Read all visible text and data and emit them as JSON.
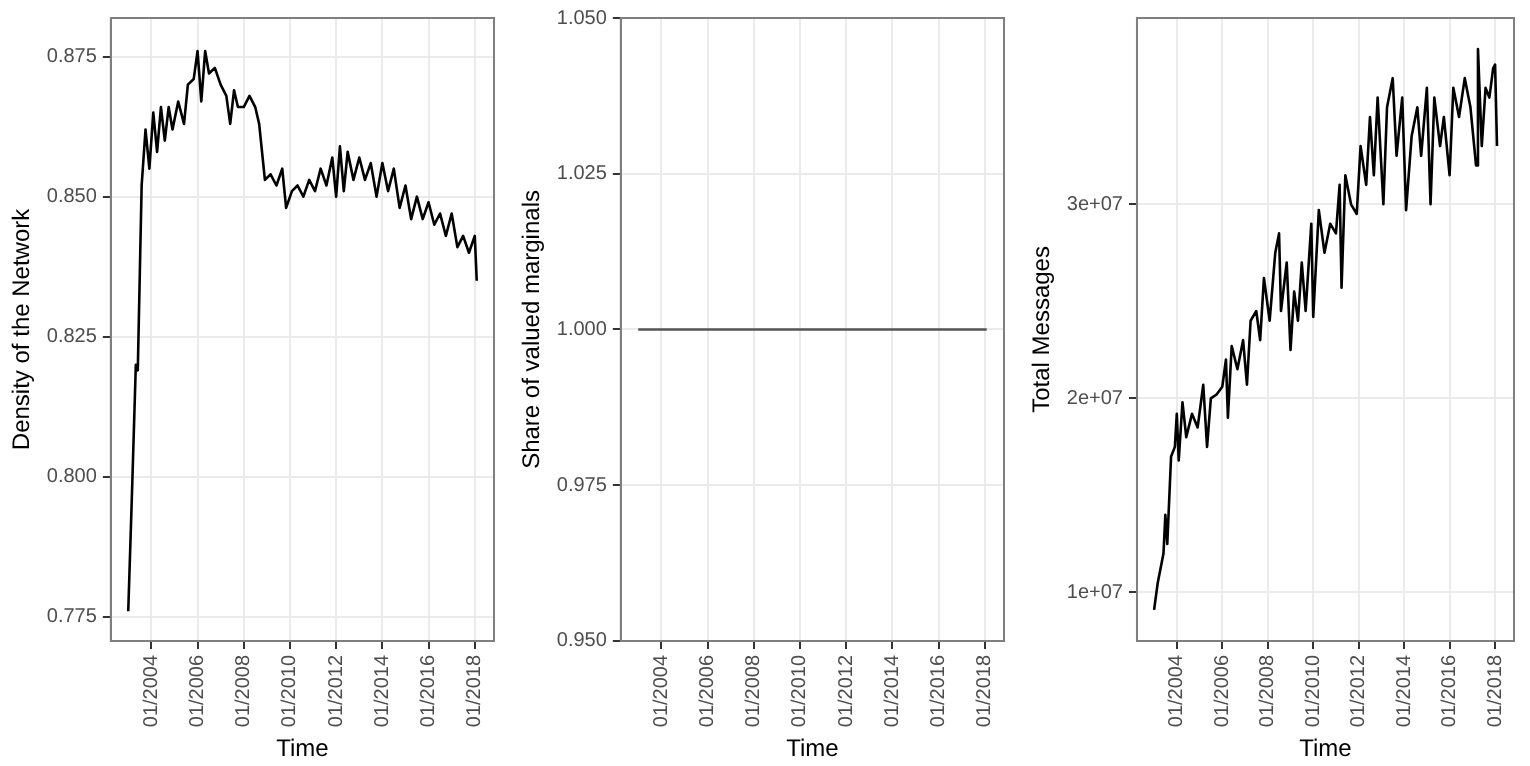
{
  "chart_data": [
    {
      "type": "line",
      "xlabel": "Time",
      "ylabel": "Density of the Network",
      "grid": true,
      "legend": false,
      "marker": "none",
      "line_style": "solid",
      "x": [
        "2003-01",
        "2003-03",
        "2003-05",
        "2003-06",
        "2003-08",
        "2003-10",
        "2003-12",
        "2004-02",
        "2004-04",
        "2004-06",
        "2004-08",
        "2004-10",
        "2004-12",
        "2005-03",
        "2005-06",
        "2005-08",
        "2005-11",
        "2006-01",
        "2006-03",
        "2006-05",
        "2006-07",
        "2006-10",
        "2007-01",
        "2007-04",
        "2007-06",
        "2007-08",
        "2007-10",
        "2008-01",
        "2008-04",
        "2008-07",
        "2008-09",
        "2008-12",
        "2009-03",
        "2009-06",
        "2009-09",
        "2009-11",
        "2010-02",
        "2010-05",
        "2010-08",
        "2010-11",
        "2011-02",
        "2011-05",
        "2011-08",
        "2011-11",
        "2012-01",
        "2012-03",
        "2012-05",
        "2012-07",
        "2012-10",
        "2013-01",
        "2013-04",
        "2013-07",
        "2013-10",
        "2014-01",
        "2014-04",
        "2014-07",
        "2014-10",
        "2015-01",
        "2015-04",
        "2015-07",
        "2015-10",
        "2016-01",
        "2016-04",
        "2016-07",
        "2016-10",
        "2017-01",
        "2017-04",
        "2017-07",
        "2017-10",
        "2018-01",
        "2018-02"
      ],
      "series": [
        {
          "color": "#000000",
          "values": [
            0.776,
            0.797,
            0.82,
            0.819,
            0.852,
            0.862,
            0.855,
            0.865,
            0.858,
            0.866,
            0.86,
            0.866,
            0.862,
            0.867,
            0.863,
            0.87,
            0.871,
            0.876,
            0.867,
            0.876,
            0.872,
            0.873,
            0.87,
            0.868,
            0.863,
            0.869,
            0.866,
            0.866,
            0.868,
            0.866,
            0.863,
            0.853,
            0.854,
            0.852,
            0.855,
            0.848,
            0.851,
            0.852,
            0.85,
            0.853,
            0.851,
            0.855,
            0.852,
            0.857,
            0.85,
            0.859,
            0.851,
            0.858,
            0.853,
            0.857,
            0.853,
            0.856,
            0.85,
            0.856,
            0.851,
            0.855,
            0.848,
            0.852,
            0.846,
            0.85,
            0.846,
            0.849,
            0.845,
            0.847,
            0.843,
            0.847,
            0.841,
            0.843,
            0.84,
            0.843,
            0.835
          ]
        }
      ],
      "xlim": [
        "2002-04",
        "2018-11"
      ],
      "xticks": [
        {
          "value": "2004-01",
          "label": "01/2004"
        },
        {
          "value": "2006-01",
          "label": "01/2006"
        },
        {
          "value": "2008-01",
          "label": "01/2008"
        },
        {
          "value": "2010-01",
          "label": "01/2010"
        },
        {
          "value": "2012-01",
          "label": "01/2012"
        },
        {
          "value": "2014-01",
          "label": "01/2014"
        },
        {
          "value": "2016-01",
          "label": "01/2016"
        },
        {
          "value": "2018-01",
          "label": "01/2018"
        }
      ],
      "ylim": [
        0.7707,
        0.8819
      ],
      "yticks": [
        {
          "value": 0.775,
          "label": "0.775"
        },
        {
          "value": 0.8,
          "label": "0.800"
        },
        {
          "value": 0.825,
          "label": "0.825"
        },
        {
          "value": 0.85,
          "label": "0.850"
        },
        {
          "value": 0.875,
          "label": "0.875"
        }
      ]
    },
    {
      "type": "line",
      "xlabel": "Time",
      "ylabel": "Share of valued marginals",
      "grid": true,
      "legend": false,
      "marker": "none",
      "line_style": "solid",
      "x": [
        "2003-01",
        "2008-01",
        "2013-01",
        "2018-02"
      ],
      "series": [
        {
          "color": "#555555",
          "values": [
            1,
            1,
            1,
            1
          ]
        }
      ],
      "xlim": [
        "2002-04",
        "2018-11"
      ],
      "xticks": [
        {
          "value": "2004-01",
          "label": "01/2004"
        },
        {
          "value": "2006-01",
          "label": "01/2006"
        },
        {
          "value": "2008-01",
          "label": "01/2008"
        },
        {
          "value": "2010-01",
          "label": "01/2010"
        },
        {
          "value": "2012-01",
          "label": "01/2012"
        },
        {
          "value": "2014-01",
          "label": "01/2014"
        },
        {
          "value": "2016-01",
          "label": "01/2016"
        },
        {
          "value": "2018-01",
          "label": "01/2018"
        }
      ],
      "ylim": [
        0.95,
        1.05
      ],
      "yticks": [
        {
          "value": 0.95,
          "label": "0.950"
        },
        {
          "value": 0.975,
          "label": "0.975"
        },
        {
          "value": 1,
          "label": "1.000"
        },
        {
          "value": 1.025,
          "label": "1.025"
        },
        {
          "value": 1.05,
          "label": "1.050"
        }
      ]
    },
    {
      "type": "line",
      "xlabel": "Time",
      "ylabel": "Total Messages",
      "grid": true,
      "legend": false,
      "marker": "none",
      "line_style": "solid",
      "x": [
        "2003-01",
        "2003-03",
        "2003-06",
        "2003-07",
        "2003-08",
        "2003-10",
        "2003-12",
        "2004-01",
        "2004-02",
        "2004-04",
        "2004-06",
        "2004-09",
        "2004-12",
        "2005-03",
        "2005-05",
        "2005-07",
        "2005-10",
        "2006-01",
        "2006-03",
        "2006-04",
        "2006-06",
        "2006-09",
        "2006-12",
        "2007-02",
        "2007-04",
        "2007-07",
        "2007-09",
        "2007-11",
        "2008-02",
        "2008-05",
        "2008-07",
        "2008-08",
        "2008-11",
        "2009-01",
        "2009-03",
        "2009-05",
        "2009-07",
        "2009-09",
        "2009-12",
        "2010-01",
        "2010-04",
        "2010-07",
        "2010-10",
        "2011-01",
        "2011-03",
        "2011-04",
        "2011-06",
        "2011-09",
        "2011-12",
        "2012-02",
        "2012-05",
        "2012-07",
        "2012-09",
        "2012-11",
        "2013-02",
        "2013-04",
        "2013-07",
        "2013-09",
        "2013-12",
        "2014-02",
        "2014-05",
        "2014-08",
        "2014-10",
        "2015-01",
        "2015-03",
        "2015-05",
        "2015-08",
        "2015-10",
        "2016-01",
        "2016-03",
        "2016-06",
        "2016-09",
        "2016-12",
        "2017-03",
        "2017-04",
        "2017-06",
        "2017-08",
        "2017-10",
        "2017-12",
        "2018-01",
        "2018-02"
      ],
      "series": [
        {
          "color": "#000000",
          "values": [
            9100000,
            10500000,
            12000000,
            14000000,
            12500000,
            17000000,
            17500000,
            19200000,
            16800000,
            19800000,
            18000000,
            19200000,
            18500000,
            20700000,
            17500000,
            20000000,
            20200000,
            20600000,
            22000000,
            19000000,
            22700000,
            21500000,
            23000000,
            20700000,
            24000000,
            24500000,
            23000000,
            26200000,
            24000000,
            27500000,
            28500000,
            24500000,
            27000000,
            22500000,
            25500000,
            24000000,
            27000000,
            24500000,
            29000000,
            24200000,
            29700000,
            27500000,
            29000000,
            28500000,
            31000000,
            25700000,
            31500000,
            30000000,
            29500000,
            33000000,
            31000000,
            34500000,
            31500000,
            35500000,
            30000000,
            35000000,
            36500000,
            32500000,
            35500000,
            29700000,
            33500000,
            35000000,
            32500000,
            36000000,
            30000000,
            35500000,
            33000000,
            34500000,
            31500000,
            36000000,
            34500000,
            36500000,
            35000000,
            32000000,
            38000000,
            33000000,
            36000000,
            35500000,
            37000000,
            37200000,
            33000000
          ]
        }
      ],
      "xlim": [
        "2002-04",
        "2018-11"
      ],
      "xticks": [
        {
          "value": "2004-01",
          "label": "01/2004"
        },
        {
          "value": "2006-01",
          "label": "01/2006"
        },
        {
          "value": "2008-01",
          "label": "01/2008"
        },
        {
          "value": "2010-01",
          "label": "01/2010"
        },
        {
          "value": "2012-01",
          "label": "01/2012"
        },
        {
          "value": "2014-01",
          "label": "01/2014"
        },
        {
          "value": "2016-01",
          "label": "01/2016"
        },
        {
          "value": "2018-01",
          "label": "01/2018"
        }
      ],
      "ylim": [
        7500000,
        39600000
      ],
      "yticks": [
        {
          "value": 10000000,
          "label": "1e+07"
        },
        {
          "value": 20000000,
          "label": "2e+07"
        },
        {
          "value": 30000000,
          "label": "3e+07"
        }
      ]
    }
  ]
}
